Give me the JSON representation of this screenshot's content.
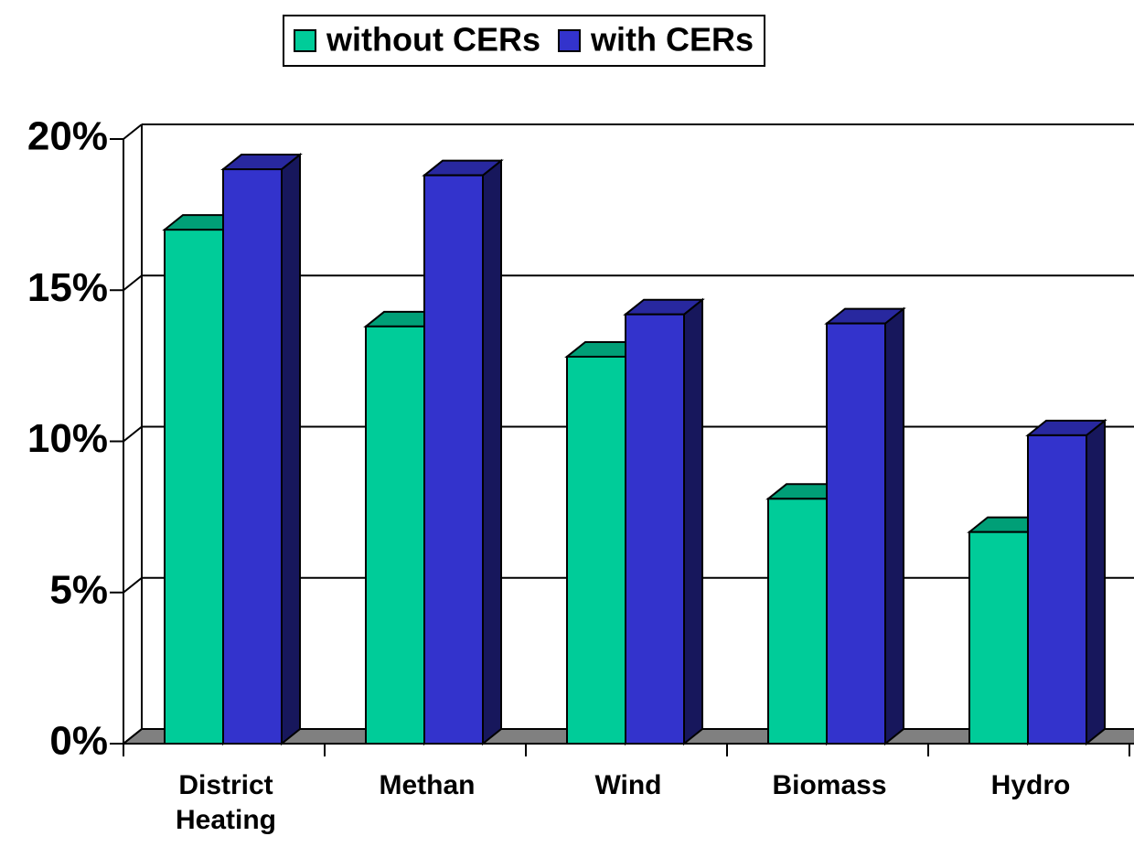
{
  "chart_data": {
    "type": "bar3d",
    "categories": [
      "District Heating",
      "Methan",
      "Wind",
      "Biomass",
      "Hydro"
    ],
    "series": [
      {
        "name": "without CERs",
        "color": "#00cc99",
        "values": [
          17.0,
          13.8,
          12.8,
          8.1,
          7.0
        ]
      },
      {
        "name": "with CERs",
        "color": "#3333cc",
        "values": [
          19.0,
          18.8,
          14.2,
          13.9,
          10.2
        ]
      }
    ],
    "ylim": [
      0,
      20
    ],
    "yticks": [
      {
        "value": 0,
        "label": "0%"
      },
      {
        "value": 5,
        "label": "5%"
      },
      {
        "value": 10,
        "label": "10%"
      },
      {
        "value": 15,
        "label": "15%"
      },
      {
        "value": 20,
        "label": "20%"
      }
    ],
    "grid": true,
    "legend": "top"
  }
}
